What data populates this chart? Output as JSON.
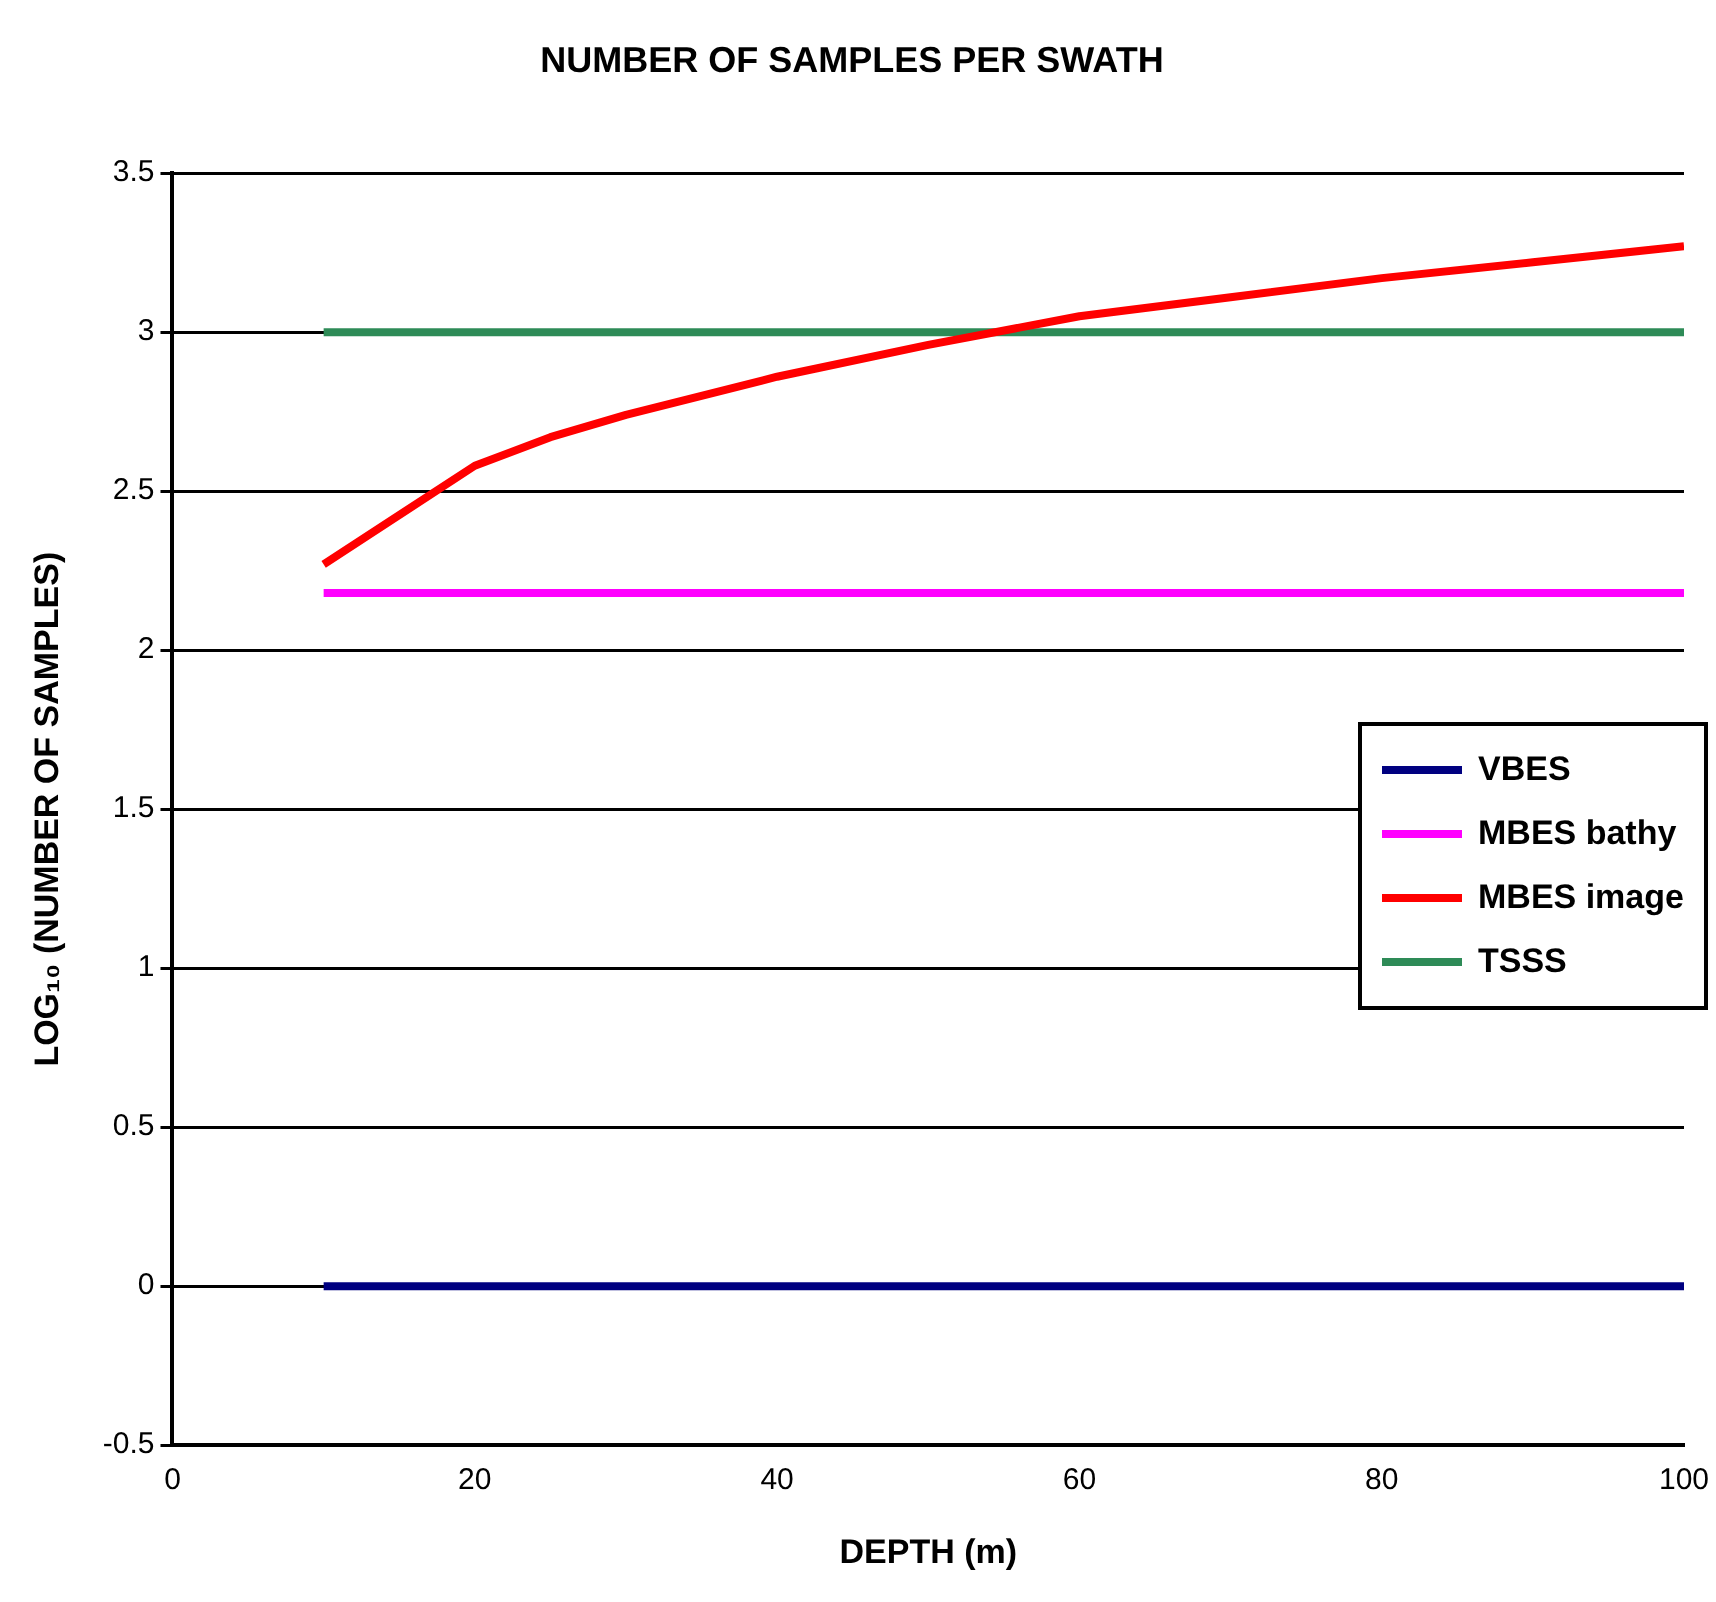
{
  "chart_data": {
    "type": "line",
    "title": "NUMBER OF SAMPLES PER SWATH",
    "xlabel": "DEPTH (m)",
    "ylabel": "LOG₁₀ (NUMBER OF SAMPLES)",
    "x": [
      10,
      100
    ],
    "series": [
      {
        "name": "VBES",
        "color": "#000080",
        "values": [
          0,
          0
        ]
      },
      {
        "name": "MBES bathy",
        "color": "#ff00ff",
        "values": [
          2.18,
          2.18
        ]
      },
      {
        "name": "MBES image",
        "color": "#ff0000",
        "x": [
          10,
          20,
          25,
          30,
          40,
          50,
          60,
          70,
          80,
          90,
          100
        ],
        "values": [
          2.27,
          2.58,
          2.67,
          2.74,
          2.86,
          2.96,
          3.05,
          3.11,
          3.17,
          3.22,
          3.27
        ]
      },
      {
        "name": "TSSS",
        "color": "#2e8b57",
        "values": [
          3,
          3
        ]
      }
    ],
    "xlim": [
      0,
      100
    ],
    "xticks": [
      0,
      20,
      40,
      60,
      80,
      100
    ],
    "ylim": [
      -0.5,
      3.5
    ],
    "yticks": [
      -0.5,
      0,
      0.5,
      1,
      1.5,
      2,
      2.5,
      3,
      3.5
    ],
    "grid": "y",
    "legend": "right",
    "marker": "none",
    "line_style": "solid"
  }
}
